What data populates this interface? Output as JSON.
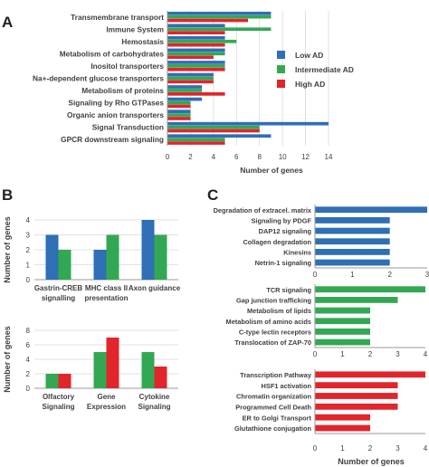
{
  "colors": {
    "low": "#2e6fb5",
    "intermediate": "#33a853",
    "high": "#e2242b",
    "axis": "#999999",
    "grid": "#d9d9d9",
    "text": "#404040"
  },
  "panel_labels": [
    "A",
    "B",
    "C"
  ],
  "chart_data": [
    {
      "id": "A",
      "type": "bar",
      "orientation": "horizontal",
      "categories": [
        "Transmembrane transport",
        "Immune System",
        "Hemostasis",
        "Metabolism of carbohydrates",
        "Inositol transporters",
        "Na+-dependent glucose transporters",
        "Metabolism of proteins",
        "Signaling by Rho GTPases",
        "Organic anion transporters",
        "Signal Transduction",
        "GPCR downstream signaling"
      ],
      "series": [
        {
          "name": "Low AD",
          "color": "#2e6fb5",
          "values": [
            9,
            5,
            5,
            5,
            5,
            4,
            3,
            3,
            2,
            14,
            9
          ]
        },
        {
          "name": "Intermediate AD",
          "color": "#33a853",
          "values": [
            9,
            9,
            6,
            5,
            5,
            4,
            3,
            2,
            2,
            8,
            5
          ]
        },
        {
          "name": "High AD",
          "color": "#e2242b",
          "values": [
            7,
            5,
            5,
            4,
            5,
            4,
            5,
            2,
            2,
            8,
            5
          ]
        }
      ],
      "xticks": [
        0,
        2,
        4,
        6,
        8,
        10,
        12,
        14
      ],
      "xlim": [
        0,
        14
      ],
      "xlabel": "Number of genes",
      "legend": [
        "Low AD",
        "Intermediate AD",
        "High AD"
      ],
      "legend_position": "right"
    },
    {
      "id": "B-top",
      "type": "bar",
      "categories": [
        "Gastrin-CREB signalling",
        "MHC class II presentation",
        "Axon guidance"
      ],
      "category_lines": [
        [
          "Gastrin-CREB",
          "signalling"
        ],
        [
          "MHC class II",
          "presentation"
        ],
        [
          "Axon guidance"
        ]
      ],
      "series": [
        {
          "name": "Low AD",
          "color": "#2e6fb5",
          "values": [
            3,
            2,
            4
          ]
        },
        {
          "name": "Intermediate AD",
          "color": "#33a853",
          "values": [
            2,
            3,
            3
          ]
        }
      ],
      "yticks": [
        0,
        1,
        2,
        3,
        4
      ],
      "ylim": [
        0,
        4
      ],
      "ylabel": "Number of genes"
    },
    {
      "id": "B-bottom",
      "type": "bar",
      "categories": [
        "Olfactory Signaling",
        "Gene Expression",
        "Cytokine Signaling"
      ],
      "category_lines": [
        [
          "Olfactory",
          "Signaling"
        ],
        [
          "Gene",
          "Expression"
        ],
        [
          "Cytokine",
          "Signaling"
        ]
      ],
      "series": [
        {
          "name": "Intermediate AD",
          "color": "#33a853",
          "values": [
            2,
            5,
            5
          ]
        },
        {
          "name": "High AD",
          "color": "#e2242b",
          "values": [
            2,
            7,
            3
          ]
        }
      ],
      "yticks": [
        0,
        2,
        4,
        6,
        8
      ],
      "ylim": [
        0,
        8
      ],
      "ylabel": "Number of genes"
    },
    {
      "id": "C-low",
      "type": "bar",
      "orientation": "horizontal",
      "categories": [
        "Degradation of extracel. matrix",
        "Signaling by PDGF",
        "DAP12 signaling",
        "Collagen degradation",
        "Kinesins",
        "Netrin-1 signaling"
      ],
      "series": [
        {
          "name": "Low AD",
          "color": "#2e6fb5",
          "values": [
            3,
            2,
            2,
            2,
            2,
            2
          ]
        }
      ],
      "xticks": [
        0,
        1,
        2,
        3
      ],
      "xlim": [
        0,
        3
      ]
    },
    {
      "id": "C-intermediate",
      "type": "bar",
      "orientation": "horizontal",
      "categories": [
        "TCR signaling",
        "Gap junction trafficking",
        "Metabolism of lipids",
        "Metabolism of amino acids",
        "C-type lectin receptors",
        "Translocation of ZAP-70"
      ],
      "series": [
        {
          "name": "Intermediate AD",
          "color": "#33a853",
          "values": [
            4,
            3,
            2,
            2,
            2,
            2
          ]
        }
      ],
      "xticks": [
        0,
        1,
        2,
        3,
        4
      ],
      "xlim": [
        0,
        4
      ]
    },
    {
      "id": "C-high",
      "type": "bar",
      "orientation": "horizontal",
      "categories": [
        "Transcription Pathway",
        "HSF1 activation",
        "Chromatin organization",
        "Programmed Cell Death",
        "ER to Golgi Transport",
        "Glutathione conjugation"
      ],
      "series": [
        {
          "name": "High AD",
          "color": "#e2242b",
          "values": [
            4,
            3,
            3,
            3,
            2,
            2
          ]
        }
      ],
      "xticks": [
        0,
        1,
        2,
        3,
        4
      ],
      "xlim": [
        0,
        4
      ],
      "xlabel": "Number of genes"
    }
  ]
}
